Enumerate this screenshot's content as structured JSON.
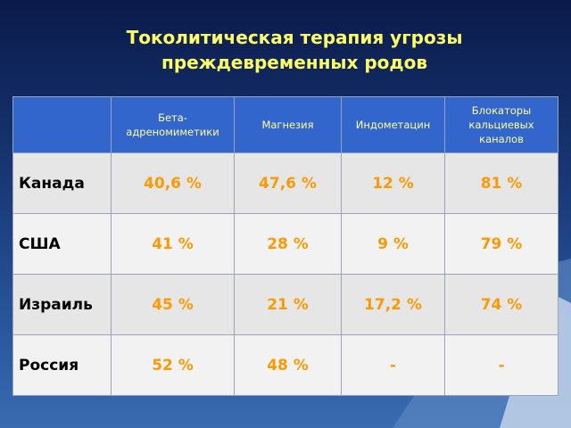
{
  "title": [
    "Токолитическая терапия угрозы",
    "преждевременных родов"
  ],
  "table": {
    "header": [
      "Бета-адреномиметики",
      "Магнезия",
      "Индометацин",
      "Блокаторы кальциевых каналов"
    ],
    "rows": [
      {
        "label": "Канада",
        "cells": [
          "40,6 %",
          "47,6 %",
          "12 %",
          "81 %"
        ]
      },
      {
        "label": "США",
        "cells": [
          "41 %",
          "28 %",
          "9 %",
          "79 %"
        ]
      },
      {
        "label": "Израиль",
        "cells": [
          "45 %",
          "21 %",
          "17,2 %",
          "74 %"
        ]
      },
      {
        "label": "Россия",
        "cells": [
          "52 %",
          "48 %",
          "-",
          "-"
        ]
      }
    ]
  }
}
